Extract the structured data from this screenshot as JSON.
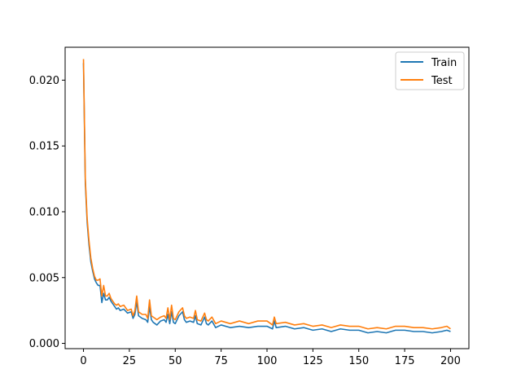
{
  "chart_data": {
    "type": "line",
    "title": "",
    "xlabel": "",
    "ylabel": "",
    "xlim": [
      -10,
      210
    ],
    "ylim": [
      -0.0004,
      0.0225
    ],
    "x_ticks": [
      0,
      25,
      50,
      75,
      100,
      125,
      150,
      175,
      200
    ],
    "x_tick_labels": [
      "0",
      "25",
      "50",
      "75",
      "100",
      "125",
      "150",
      "175",
      "200"
    ],
    "y_ticks": [
      0.0,
      0.005,
      0.01,
      0.015,
      0.02
    ],
    "y_tick_labels": [
      "0.000",
      "0.005",
      "0.010",
      "0.015",
      "0.020"
    ],
    "grid": false,
    "legend_position": "top-right",
    "series": [
      {
        "name": "Train",
        "color": "#1f77b4",
        "x": [
          0,
          1,
          2,
          3,
          4,
          5,
          6,
          7,
          8,
          9,
          10,
          11,
          12,
          13,
          14,
          15,
          16,
          17,
          18,
          19,
          20,
          22,
          24,
          26,
          27,
          28,
          29,
          30,
          32,
          34,
          35,
          36,
          37,
          38,
          40,
          42,
          44,
          45,
          46,
          47,
          48,
          49,
          50,
          52,
          54,
          55,
          56,
          58,
          60,
          61,
          62,
          64,
          66,
          67,
          68,
          70,
          72,
          75,
          80,
          85,
          90,
          95,
          100,
          103,
          104,
          105,
          110,
          115,
          120,
          125,
          130,
          135,
          140,
          145,
          150,
          155,
          160,
          165,
          170,
          175,
          180,
          185,
          190,
          195,
          198,
          200
        ],
        "y": [
          0.0213,
          0.0122,
          0.0092,
          0.0075,
          0.0062,
          0.0055,
          0.0049,
          0.0046,
          0.0044,
          0.0044,
          0.0031,
          0.0038,
          0.0033,
          0.0033,
          0.0035,
          0.0032,
          0.003,
          0.0028,
          0.0026,
          0.0027,
          0.0025,
          0.0026,
          0.0023,
          0.0024,
          0.0019,
          0.0022,
          0.0032,
          0.0021,
          0.0019,
          0.0018,
          0.0016,
          0.0028,
          0.0018,
          0.0016,
          0.0014,
          0.0017,
          0.0018,
          0.0016,
          0.0022,
          0.0015,
          0.0024,
          0.0016,
          0.0015,
          0.0021,
          0.0024,
          0.0018,
          0.0016,
          0.0017,
          0.0016,
          0.0021,
          0.0015,
          0.0014,
          0.002,
          0.0015,
          0.0014,
          0.0017,
          0.0012,
          0.0014,
          0.0012,
          0.0013,
          0.0012,
          0.0013,
          0.0013,
          0.0011,
          0.0017,
          0.0012,
          0.0013,
          0.0011,
          0.0012,
          0.001,
          0.0011,
          0.0009,
          0.0011,
          0.001,
          0.001,
          0.0008,
          0.0009,
          0.0008,
          0.001,
          0.001,
          0.0009,
          0.0009,
          0.0008,
          0.0009,
          0.001,
          0.0009
        ]
      },
      {
        "name": "Test",
        "color": "#ff7f0e",
        "x": [
          0,
          1,
          2,
          3,
          4,
          5,
          6,
          7,
          8,
          9,
          10,
          11,
          12,
          13,
          14,
          15,
          16,
          17,
          18,
          19,
          20,
          22,
          24,
          26,
          27,
          28,
          29,
          30,
          32,
          34,
          35,
          36,
          37,
          38,
          40,
          42,
          44,
          45,
          46,
          47,
          48,
          49,
          50,
          52,
          54,
          55,
          56,
          58,
          60,
          61,
          62,
          64,
          66,
          67,
          68,
          70,
          72,
          75,
          80,
          85,
          90,
          95,
          100,
          103,
          104,
          105,
          110,
          115,
          120,
          125,
          130,
          135,
          140,
          145,
          150,
          155,
          160,
          165,
          170,
          175,
          180,
          185,
          190,
          195,
          198,
          200
        ],
        "y": [
          0.0216,
          0.0125,
          0.0095,
          0.0078,
          0.0065,
          0.0057,
          0.0051,
          0.0048,
          0.0048,
          0.0049,
          0.0036,
          0.0044,
          0.0036,
          0.0036,
          0.0038,
          0.0034,
          0.0032,
          0.003,
          0.0029,
          0.003,
          0.0028,
          0.0029,
          0.0025,
          0.0026,
          0.0021,
          0.0025,
          0.0036,
          0.0024,
          0.0022,
          0.0022,
          0.0019,
          0.0033,
          0.0021,
          0.002,
          0.0018,
          0.002,
          0.0021,
          0.0019,
          0.0027,
          0.0018,
          0.0029,
          0.0019,
          0.0018,
          0.0024,
          0.0027,
          0.0021,
          0.0019,
          0.002,
          0.0019,
          0.0025,
          0.0018,
          0.0017,
          0.0023,
          0.0018,
          0.0017,
          0.002,
          0.0015,
          0.0017,
          0.0015,
          0.0017,
          0.0015,
          0.0017,
          0.0017,
          0.0014,
          0.002,
          0.0015,
          0.0016,
          0.0014,
          0.0015,
          0.0013,
          0.0014,
          0.0012,
          0.0014,
          0.0013,
          0.0013,
          0.0011,
          0.0012,
          0.0011,
          0.0013,
          0.0013,
          0.0012,
          0.0012,
          0.0011,
          0.0012,
          0.0013,
          0.0011
        ]
      }
    ]
  }
}
